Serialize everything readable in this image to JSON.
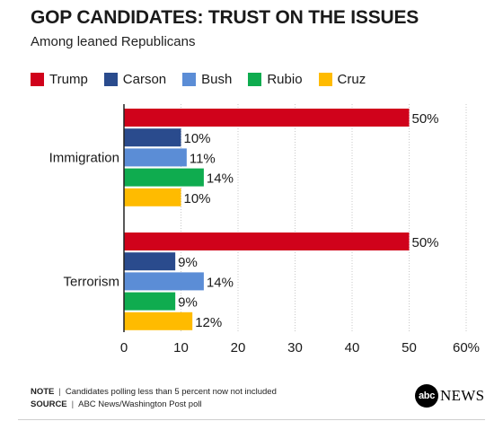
{
  "chart_data": {
    "type": "bar",
    "orientation": "horizontal",
    "title": "GOP CANDIDATES: TRUST ON THE ISSUES",
    "subtitle": "Among leaned Republicans",
    "categories": [
      "Immigration",
      "Terrorism"
    ],
    "series": [
      {
        "name": "Trump",
        "color": "#d0021b",
        "values": [
          50,
          50
        ]
      },
      {
        "name": "Carson",
        "color": "#2a4b8d",
        "values": [
          10,
          9
        ]
      },
      {
        "name": "Bush",
        "color": "#5b8dd6",
        "values": [
          11,
          14
        ]
      },
      {
        "name": "Rubio",
        "color": "#0fac4f",
        "values": [
          14,
          9
        ]
      },
      {
        "name": "Cruz",
        "color": "#ffbb00",
        "values": [
          10,
          12
        ]
      }
    ],
    "value_suffix": "%",
    "xlim": [
      0,
      60
    ],
    "xticks": [
      "0",
      "10",
      "20",
      "30",
      "40",
      "50",
      "60%"
    ],
    "grid": true,
    "legend_position": "top"
  },
  "notes": {
    "note_label": "NOTE",
    "note_text": "Candidates polling less than 5 percent now not included",
    "source_label": "SOURCE",
    "source_text": "ABC News/Washington Post poll"
  },
  "brand": {
    "circle_text": "abc",
    "word": "NEWS"
  }
}
